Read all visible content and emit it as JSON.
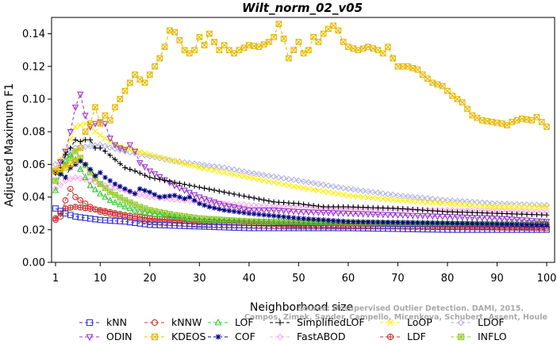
{
  "chart_data": {
    "type": "line",
    "title": "Wilt_norm_02_v05",
    "xlabel": "Neighborhood size",
    "ylabel": "Adjusted Maximum F1",
    "xlim": [
      1,
      100
    ],
    "ylim": [
      0,
      0.15
    ],
    "xticks": [
      1,
      10,
      20,
      30,
      40,
      50,
      60,
      70,
      80,
      90,
      100
    ],
    "xtick_labels": [
      "1",
      "10",
      "20",
      "30",
      "40",
      "50",
      "60",
      "70",
      "80",
      "90",
      "100"
    ],
    "yticks": [
      0.0,
      0.02,
      0.04,
      0.06,
      0.08,
      0.1,
      0.12,
      0.14
    ],
    "ytick_labels": [
      "0.00",
      "0.02",
      "0.04",
      "0.06",
      "0.08",
      "0.10",
      "0.12",
      "0.14"
    ],
    "legend_position": "bottom",
    "watermark_lines": [
      "Source: Unsupervised Outlier Detection. DAMI, 2015.",
      "Campos, Zimek, Sander, Campello, Micenkova, Schubert, Assent, Houle"
    ],
    "series": [
      {
        "name": "kNN",
        "color": "#3333cc",
        "marker": "square",
        "keypoints": [
          [
            1,
            0.033
          ],
          [
            3,
            0.03
          ],
          [
            5,
            0.028
          ],
          [
            10,
            0.026
          ],
          [
            15,
            0.025
          ],
          [
            20,
            0.023
          ],
          [
            30,
            0.022
          ],
          [
            40,
            0.021
          ],
          [
            60,
            0.021
          ],
          [
            80,
            0.02
          ],
          [
            100,
            0.02
          ]
        ]
      },
      {
        "name": "kNNW",
        "color": "#cc3333",
        "marker": "circle",
        "keypoints": [
          [
            1,
            0.026
          ],
          [
            2,
            0.028
          ],
          [
            3,
            0.038
          ],
          [
            4,
            0.045
          ],
          [
            5,
            0.04
          ],
          [
            6,
            0.038
          ],
          [
            8,
            0.034
          ],
          [
            10,
            0.031
          ],
          [
            15,
            0.028
          ],
          [
            20,
            0.025
          ],
          [
            30,
            0.023
          ],
          [
            50,
            0.022
          ],
          [
            70,
            0.022
          ],
          [
            100,
            0.021
          ]
        ]
      },
      {
        "name": "LOF",
        "color": "#33cc33",
        "marker": "triangle",
        "keypoints": [
          [
            1,
            0.044
          ],
          [
            2,
            0.055
          ],
          [
            3,
            0.062
          ],
          [
            4,
            0.066
          ],
          [
            5,
            0.063
          ],
          [
            6,
            0.057
          ],
          [
            7,
            0.052
          ],
          [
            8,
            0.047
          ],
          [
            10,
            0.042
          ],
          [
            12,
            0.038
          ],
          [
            15,
            0.034
          ],
          [
            18,
            0.031
          ],
          [
            20,
            0.03
          ],
          [
            25,
            0.028
          ],
          [
            30,
            0.026
          ],
          [
            40,
            0.025
          ],
          [
            60,
            0.024
          ],
          [
            80,
            0.024
          ],
          [
            100,
            0.024
          ]
        ]
      },
      {
        "name": "SimplifiedLOF",
        "color": "#000000",
        "marker": "plus",
        "keypoints": [
          [
            1,
            0.055
          ],
          [
            2,
            0.058
          ],
          [
            3,
            0.066
          ],
          [
            4,
            0.07
          ],
          [
            5,
            0.075
          ],
          [
            6,
            0.074
          ],
          [
            7,
            0.075
          ],
          [
            8,
            0.075
          ],
          [
            9,
            0.07
          ],
          [
            10,
            0.07
          ],
          [
            11,
            0.068
          ],
          [
            13,
            0.063
          ],
          [
            15,
            0.058
          ],
          [
            17,
            0.056
          ],
          [
            20,
            0.052
          ],
          [
            25,
            0.049
          ],
          [
            30,
            0.046
          ],
          [
            35,
            0.043
          ],
          [
            40,
            0.04
          ],
          [
            45,
            0.037
          ],
          [
            50,
            0.036
          ],
          [
            55,
            0.034
          ],
          [
            60,
            0.034
          ],
          [
            70,
            0.033
          ],
          [
            80,
            0.031
          ],
          [
            90,
            0.03
          ],
          [
            100,
            0.029
          ]
        ]
      },
      {
        "name": "LoOP",
        "color": "#ffee00",
        "marker": "x",
        "keypoints": [
          [
            1,
            0.057
          ],
          [
            3,
            0.068
          ],
          [
            5,
            0.083
          ],
          [
            7,
            0.085
          ],
          [
            10,
            0.078
          ],
          [
            13,
            0.072
          ],
          [
            15,
            0.07
          ],
          [
            20,
            0.066
          ],
          [
            25,
            0.062
          ],
          [
            30,
            0.058
          ],
          [
            35,
            0.055
          ],
          [
            40,
            0.052
          ],
          [
            50,
            0.046
          ],
          [
            60,
            0.041
          ],
          [
            70,
            0.038
          ],
          [
            80,
            0.036
          ],
          [
            90,
            0.034
          ],
          [
            100,
            0.034
          ]
        ]
      },
      {
        "name": "LDOF",
        "color": "#b3b3e6",
        "marker": "diamond",
        "keypoints": [
          [
            1,
            0.06
          ],
          [
            5,
            0.07
          ],
          [
            10,
            0.072
          ],
          [
            15,
            0.068
          ],
          [
            20,
            0.065
          ],
          [
            25,
            0.062
          ],
          [
            30,
            0.06
          ],
          [
            35,
            0.058
          ],
          [
            40,
            0.055
          ],
          [
            50,
            0.05
          ],
          [
            60,
            0.045
          ],
          [
            70,
            0.041
          ],
          [
            80,
            0.038
          ],
          [
            90,
            0.036
          ],
          [
            100,
            0.035
          ]
        ]
      },
      {
        "name": "ODIN",
        "color": "#9933cc",
        "marker": "triangle-down",
        "keypoints": [
          [
            1,
            0.055
          ],
          [
            3,
            0.068
          ],
          [
            4,
            0.08
          ],
          [
            5,
            0.095
          ],
          [
            6,
            0.103
          ],
          [
            7,
            0.09
          ],
          [
            8,
            0.083
          ],
          [
            9,
            0.085
          ],
          [
            10,
            0.086
          ],
          [
            11,
            0.085
          ],
          [
            12,
            0.076
          ],
          [
            13,
            0.072
          ],
          [
            14,
            0.07
          ],
          [
            15,
            0.069
          ],
          [
            16,
            0.072
          ],
          [
            17,
            0.068
          ],
          [
            18,
            0.061
          ],
          [
            20,
            0.056
          ],
          [
            25,
            0.047
          ],
          [
            30,
            0.04
          ],
          [
            35,
            0.035
          ],
          [
            40,
            0.032
          ],
          [
            45,
            0.032
          ],
          [
            50,
            0.031
          ],
          [
            60,
            0.03
          ],
          [
            70,
            0.029
          ],
          [
            80,
            0.028
          ],
          [
            90,
            0.027
          ],
          [
            100,
            0.025
          ]
        ]
      },
      {
        "name": "KDEOS",
        "color": "#e6b800",
        "marker": "square-x",
        "keypoints": [
          [
            1,
            0.056
          ],
          [
            3,
            0.058
          ],
          [
            5,
            0.062
          ],
          [
            6,
            0.07
          ],
          [
            7,
            0.08
          ],
          [
            8,
            0.085
          ],
          [
            9,
            0.095
          ],
          [
            10,
            0.085
          ],
          [
            11,
            0.09
          ],
          [
            12,
            0.087
          ],
          [
            13,
            0.095
          ],
          [
            14,
            0.1
          ],
          [
            15,
            0.105
          ],
          [
            16,
            0.11
          ],
          [
            17,
            0.115
          ],
          [
            18,
            0.112
          ],
          [
            19,
            0.11
          ],
          [
            20,
            0.115
          ],
          [
            21,
            0.12
          ],
          [
            22,
            0.125
          ],
          [
            23,
            0.132
          ],
          [
            24,
            0.142
          ],
          [
            25,
            0.141
          ],
          [
            26,
            0.136
          ],
          [
            27,
            0.13
          ],
          [
            28,
            0.128
          ],
          [
            29,
            0.13
          ],
          [
            30,
            0.138
          ],
          [
            31,
            0.133
          ],
          [
            32,
            0.14
          ],
          [
            33,
            0.135
          ],
          [
            34,
            0.13
          ],
          [
            35,
            0.133
          ],
          [
            36,
            0.13
          ],
          [
            37,
            0.128
          ],
          [
            38,
            0.13
          ],
          [
            40,
            0.133
          ],
          [
            42,
            0.132
          ],
          [
            44,
            0.135
          ],
          [
            45,
            0.138
          ],
          [
            46,
            0.146
          ],
          [
            47,
            0.137
          ],
          [
            48,
            0.125
          ],
          [
            49,
            0.13
          ],
          [
            50,
            0.135
          ],
          [
            51,
            0.128
          ],
          [
            52,
            0.13
          ],
          [
            53,
            0.138
          ],
          [
            54,
            0.135
          ],
          [
            55,
            0.14
          ],
          [
            56,
            0.143
          ],
          [
            57,
            0.145
          ],
          [
            58,
            0.142
          ],
          [
            59,
            0.135
          ],
          [
            60,
            0.132
          ],
          [
            62,
            0.13
          ],
          [
            64,
            0.132
          ],
          [
            66,
            0.13
          ],
          [
            67,
            0.128
          ],
          [
            68,
            0.132
          ],
          [
            69,
            0.125
          ],
          [
            70,
            0.12
          ],
          [
            72,
            0.12
          ],
          [
            74,
            0.118
          ],
          [
            75,
            0.115
          ],
          [
            77,
            0.11
          ],
          [
            79,
            0.108
          ],
          [
            81,
            0.102
          ],
          [
            83,
            0.098
          ],
          [
            84,
            0.094
          ],
          [
            85,
            0.09
          ],
          [
            87,
            0.087
          ],
          [
            89,
            0.086
          ],
          [
            91,
            0.085
          ],
          [
            92,
            0.084
          ],
          [
            93,
            0.086
          ],
          [
            95,
            0.088
          ],
          [
            97,
            0.087
          ],
          [
            98,
            0.089
          ],
          [
            99,
            0.086
          ],
          [
            100,
            0.083
          ]
        ]
      },
      {
        "name": "COF",
        "color": "#000080",
        "marker": "star",
        "keypoints": [
          [
            1,
            0.055
          ],
          [
            2,
            0.054
          ],
          [
            3,
            0.052
          ],
          [
            4,
            0.058
          ],
          [
            5,
            0.06
          ],
          [
            6,
            0.062
          ],
          [
            7,
            0.06
          ],
          [
            8,
            0.057
          ],
          [
            9,
            0.053
          ],
          [
            10,
            0.055
          ],
          [
            11,
            0.052
          ],
          [
            13,
            0.048
          ],
          [
            15,
            0.045
          ],
          [
            17,
            0.042
          ],
          [
            18,
            0.045
          ],
          [
            20,
            0.043
          ],
          [
            22,
            0.04
          ],
          [
            25,
            0.041
          ],
          [
            27,
            0.039
          ],
          [
            28,
            0.04
          ],
          [
            30,
            0.036
          ],
          [
            32,
            0.034
          ],
          [
            35,
            0.032
          ],
          [
            40,
            0.03
          ],
          [
            50,
            0.027
          ],
          [
            60,
            0.025
          ],
          [
            80,
            0.024
          ],
          [
            100,
            0.023
          ]
        ]
      },
      {
        "name": "FastABOD",
        "color": "#ffaaee",
        "marker": "diamond",
        "keypoints": [
          [
            1,
            0.045
          ],
          [
            3,
            0.05
          ],
          [
            5,
            0.052
          ],
          [
            8,
            0.05
          ],
          [
            10,
            0.048
          ],
          [
            15,
            0.044
          ],
          [
            20,
            0.04
          ],
          [
            30,
            0.037
          ],
          [
            40,
            0.035
          ],
          [
            60,
            0.033
          ],
          [
            80,
            0.032
          ],
          [
            100,
            0.031
          ]
        ]
      },
      {
        "name": "LDF",
        "color": "#cc3333",
        "marker": "circle-plus",
        "keypoints": [
          [
            1,
            0.027
          ],
          [
            3,
            0.033
          ],
          [
            5,
            0.034
          ],
          [
            10,
            0.032
          ],
          [
            15,
            0.029
          ],
          [
            20,
            0.027
          ],
          [
            30,
            0.025
          ],
          [
            50,
            0.023
          ],
          [
            70,
            0.022
          ],
          [
            100,
            0.022
          ]
        ]
      },
      {
        "name": "INFLO",
        "color": "#99cc33",
        "marker": "square-star",
        "keypoints": [
          [
            1,
            0.05
          ],
          [
            3,
            0.06
          ],
          [
            5,
            0.068
          ],
          [
            6,
            0.064
          ],
          [
            8,
            0.055
          ],
          [
            10,
            0.048
          ],
          [
            12,
            0.043
          ],
          [
            15,
            0.038
          ],
          [
            18,
            0.034
          ],
          [
            20,
            0.032
          ],
          [
            25,
            0.029
          ],
          [
            30,
            0.027
          ],
          [
            40,
            0.025
          ],
          [
            60,
            0.024
          ],
          [
            100,
            0.023
          ]
        ]
      }
    ]
  }
}
